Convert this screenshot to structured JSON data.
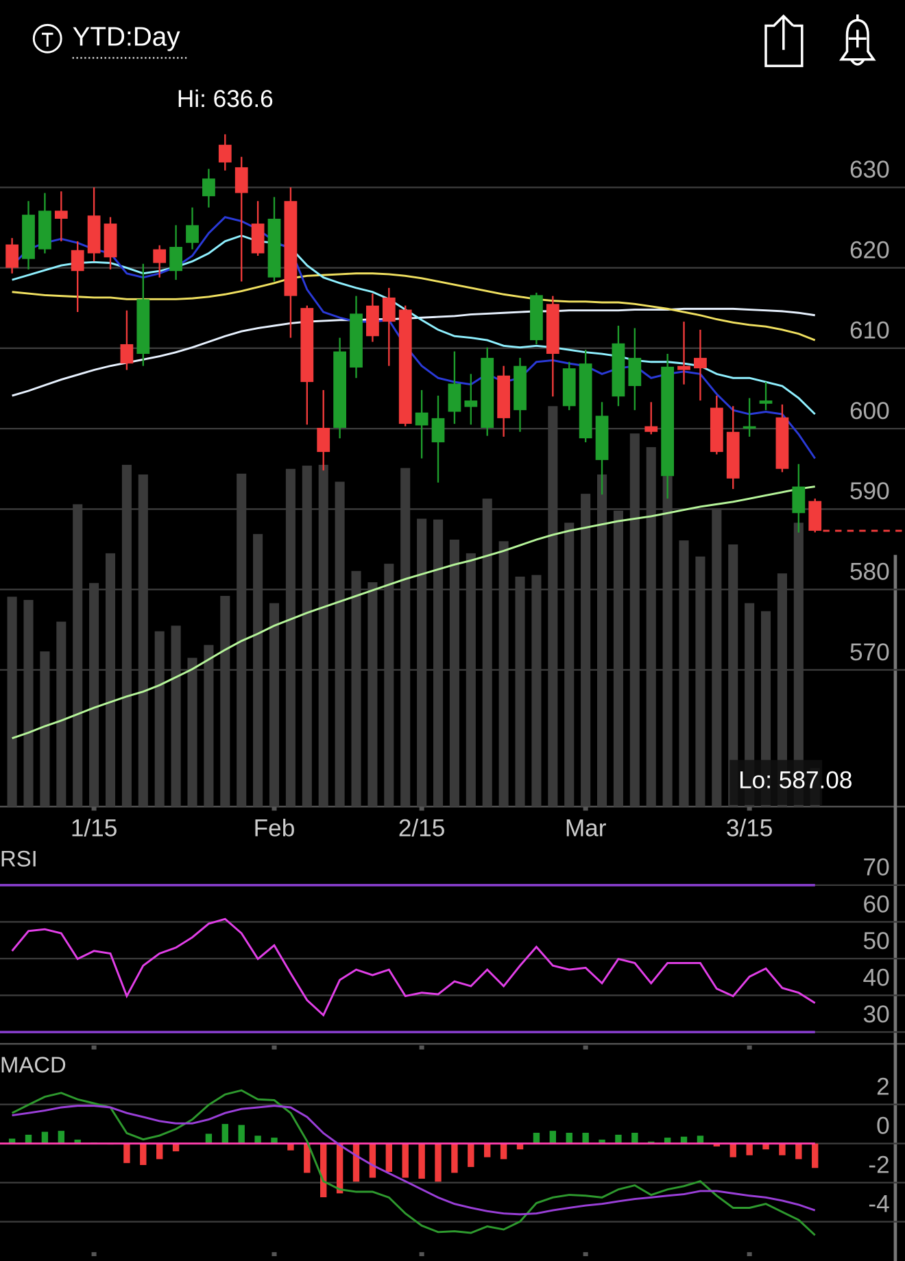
{
  "header": {
    "title": "YTD:Day"
  },
  "chart_data": [
    {
      "type": "candlestick",
      "categories": [
        null,
        null,
        null,
        null,
        null,
        "1/15",
        null,
        null,
        null,
        null,
        null,
        null,
        null,
        null,
        null,
        null,
        "Feb",
        null,
        null,
        null,
        null,
        null,
        null,
        null,
        null,
        "2/15",
        null,
        null,
        null,
        null,
        null,
        null,
        null,
        null,
        null,
        "Mar",
        null,
        null,
        null,
        null,
        null,
        null,
        null,
        null,
        null,
        "3/15",
        null,
        null,
        null,
        null
      ],
      "open": [
        622.9,
        621.1,
        622.3,
        627.1,
        622.2,
        626.5,
        625.5,
        610.5,
        609.3,
        622.3,
        619.6,
        623.1,
        628.9,
        635.3,
        632.5,
        625.5,
        618.8,
        628.3,
        615,
        600.1,
        600.1,
        607.6,
        615.3,
        616.3,
        614.8,
        600.4,
        598.3,
        602.1,
        602.7,
        600.1,
        606.6,
        602.3,
        611,
        615.5,
        602.8,
        598.8,
        596.1,
        604,
        605.3,
        600.3,
        594.1,
        607.8,
        608.8,
        602.6,
        599.6,
        600,
        603.1,
        601.4,
        589.5,
        591
      ],
      "high": [
        623.7,
        628.3,
        629.3,
        629.5,
        623.3,
        630,
        626.3,
        614.7,
        620.5,
        622.8,
        625.3,
        627.5,
        632.3,
        636.6,
        633.8,
        628.3,
        628.8,
        630,
        615.3,
        604.8,
        611.3,
        616.5,
        616.8,
        617.5,
        615.3,
        604.8,
        604.1,
        609.6,
        606.8,
        610.1,
        607.8,
        608.8,
        616.9,
        616.5,
        608.3,
        609.8,
        603.3,
        612.8,
        612.5,
        603.3,
        609.3,
        613.3,
        612.3,
        604.1,
        602.8,
        603.8,
        605.8,
        603,
        595.6,
        591.3
      ],
      "low": [
        619.3,
        619.8,
        621.8,
        623.3,
        614.5,
        620.8,
        619.8,
        607.3,
        607.8,
        618.8,
        618.5,
        622.3,
        627.5,
        632.1,
        618.3,
        621.5,
        618.3,
        611.3,
        600.5,
        594.8,
        598.8,
        606.3,
        610.8,
        607.8,
        600.3,
        596.3,
        593.3,
        600.6,
        600.5,
        599.1,
        599,
        599.6,
        610.5,
        604,
        602.3,
        598.3,
        591.8,
        602.8,
        602.3,
        599.3,
        591.3,
        605.5,
        603.5,
        596.8,
        592.5,
        599,
        602.3,
        594.6,
        587.08,
        587.1
      ],
      "close": [
        620,
        626.6,
        627.1,
        626.1,
        619.6,
        621.8,
        621.3,
        608.1,
        616.1,
        620.6,
        622.6,
        625.3,
        631.1,
        633.1,
        629.3,
        621.8,
        626.1,
        616.5,
        605.8,
        597.1,
        609.6,
        614.3,
        611.5,
        613.3,
        600.6,
        602,
        601.3,
        605.6,
        603.5,
        608.8,
        601.3,
        607.8,
        616.6,
        609.3,
        607.5,
        608.1,
        601.6,
        610.6,
        608.8,
        599.6,
        607.7,
        607.3,
        607.5,
        597.1,
        593.8,
        600.3,
        603.5,
        595,
        592.8,
        587.3
      ],
      "volume": [
        261,
        257,
        193,
        230,
        376,
        278,
        315,
        425,
        413,
        218,
        225,
        185,
        201,
        262,
        414,
        339,
        253,
        420,
        424,
        425,
        404,
        293,
        279,
        302,
        421,
        358,
        357,
        332,
        315,
        383,
        330,
        286,
        288,
        498,
        353,
        389,
        413,
        368,
        464,
        447,
        411,
        331,
        311,
        371,
        326,
        253,
        243,
        290,
        353,
        48
      ],
      "volume_color": "#3a3a3a",
      "up_color": "#1e9e2c",
      "down_color": "#f23b3b",
      "series": [
        {
          "color": "#b6f59a",
          "values": [
            561.5,
            562.2,
            563,
            563.7,
            564.5,
            565.3,
            566,
            566.7,
            567.3,
            568.1,
            569.1,
            570.1,
            571.3,
            572.5,
            573.6,
            574.5,
            575.5,
            576.3,
            577.1,
            577.8,
            578.5,
            579.2,
            579.9,
            580.6,
            581.3,
            581.9,
            582.5,
            583.1,
            583.6,
            584.2,
            584.8,
            585.5,
            586.2,
            586.8,
            587.3,
            587.7,
            588.1,
            588.5,
            588.8,
            589.1,
            589.5,
            589.9,
            590.3,
            590.6,
            590.9,
            591.3,
            591.7,
            592.1,
            592.5,
            592.8
          ]
        },
        {
          "color": "#e8f2ff",
          "values": [
            604.1,
            604.7,
            605.4,
            606.1,
            606.7,
            607.3,
            607.8,
            608.2,
            608.6,
            609,
            609.5,
            610.1,
            610.8,
            611.5,
            612.1,
            612.5,
            612.8,
            613.1,
            613.3,
            613.4,
            613.5,
            613.5,
            613.6,
            613.6,
            613.7,
            613.8,
            613.9,
            614,
            614.2,
            614.3,
            614.4,
            614.5,
            614.6,
            614.6,
            614.7,
            614.7,
            614.7,
            614.7,
            614.8,
            614.8,
            614.8,
            614.9,
            614.9,
            614.9,
            614.9,
            614.8,
            614.7,
            614.6,
            614.4,
            614.1
          ]
        },
        {
          "color": "#f0e060",
          "values": [
            617,
            616.8,
            616.6,
            616.5,
            616.4,
            616.3,
            616.3,
            616.1,
            616.1,
            616.1,
            616.1,
            616.2,
            616.4,
            616.7,
            617.1,
            617.6,
            618.1,
            618.7,
            619,
            619.1,
            619.2,
            619.3,
            619.3,
            619.2,
            619,
            618.7,
            618.3,
            617.9,
            617.5,
            617.1,
            616.7,
            616.4,
            616.1,
            615.9,
            615.8,
            615.8,
            615.7,
            615.7,
            615.5,
            615.2,
            614.9,
            614.5,
            614.1,
            613.6,
            613.2,
            612.9,
            612.7,
            612.3,
            611.8,
            611
          ]
        },
        {
          "color": "#8ff0ff",
          "values": [
            618.5,
            619.1,
            619.7,
            620.3,
            620.6,
            620.7,
            620.6,
            620,
            619.3,
            619.6,
            620.1,
            620.8,
            621.8,
            623.3,
            624,
            623.3,
            623.1,
            622.5,
            620.3,
            618.8,
            618.1,
            617.5,
            617,
            616.1,
            614.8,
            613.5,
            612.3,
            611.5,
            611.3,
            611,
            610.3,
            610.1,
            610.3,
            610.1,
            609.8,
            609.5,
            609.3,
            609,
            608.5,
            608.3,
            608.3,
            608.1,
            607.8,
            606.8,
            606.3,
            606.3,
            605.8,
            605.3,
            603.8,
            601.8
          ]
        },
        {
          "color": "#2a3ad8",
          "values": [
            620.3,
            622.3,
            623.1,
            623.6,
            623.1,
            622.3,
            621.8,
            619.3,
            618.8,
            619.3,
            620.1,
            621.5,
            624.3,
            626.3,
            625.8,
            624.8,
            623.3,
            622.3,
            617.3,
            614.5,
            613.8,
            613.3,
            613.3,
            613.5,
            610.3,
            607.8,
            606.3,
            605.8,
            605.5,
            606.8,
            605.8,
            606.3,
            608.3,
            608.5,
            608.1,
            607.8,
            606.8,
            607.5,
            607.8,
            606.3,
            606.8,
            607.1,
            606.8,
            604.3,
            602.3,
            601.8,
            602.1,
            601.8,
            599.3,
            596.3
          ]
        }
      ],
      "ylim": [
        553,
        640
      ],
      "yticks": [
        570,
        580,
        590,
        600,
        610,
        620,
        630
      ],
      "grid": true,
      "hi_label": "Hi: 636.6",
      "lo_label": "Lo: 587.08",
      "last_color": "#f23b3b"
    },
    {
      "type": "line",
      "title": "RSI",
      "series": [
        {
          "color": "#e23fe8",
          "values": [
            52.1,
            57.5,
            58,
            56.9,
            49.9,
            52.1,
            51.4,
            39.8,
            48.1,
            51.4,
            53,
            55.8,
            59.5,
            60.8,
            56.9,
            49.9,
            53.6,
            46,
            38.7,
            34.6,
            44.2,
            47,
            45.5,
            47,
            39.8,
            40.7,
            40.3,
            43.8,
            42.5,
            47,
            42.5,
            48.1,
            53.2,
            48.1,
            47,
            47.5,
            43.3,
            49.9,
            48.8,
            43.3,
            48.8,
            48.8,
            48.8,
            41.8,
            39.8,
            45.1,
            47.3,
            42,
            40.7,
            37.9
          ]
        }
      ],
      "levels": [
        30,
        70
      ],
      "level_color": "#8a3fd0",
      "ylim": [
        27,
        80
      ],
      "yticks": [
        30,
        40,
        50,
        60,
        70
      ],
      "grid": true
    },
    {
      "type": "macd",
      "title": "MACD",
      "series": [
        {
          "color": "#2e9a2e",
          "values": [
            1.56,
            1.98,
            2.39,
            2.59,
            2.26,
            2.06,
            1.85,
            0.53,
            0.21,
            0.41,
            0.74,
            1.23,
            1.98,
            2.51,
            2.72,
            2.26,
            2.22,
            1.56,
            0.12,
            -1.93,
            -2.35,
            -2.47,
            -2.47,
            -2.76,
            -3.58,
            -4.2,
            -4.53,
            -4.49,
            -4.57,
            -4.24,
            -4.4,
            -3.99,
            -3.05,
            -2.76,
            -2.63,
            -2.67,
            -2.76,
            -2.35,
            -2.14,
            -2.63,
            -2.35,
            -2.18,
            -1.93,
            -2.67,
            -3.29,
            -3.29,
            -3.09,
            -3.5,
            -3.91,
            -4.69
          ]
        },
        {
          "color": "#9a3fd8",
          "values": [
            1.44,
            1.56,
            1.69,
            1.85,
            1.93,
            1.93,
            1.85,
            1.56,
            1.36,
            1.15,
            1.03,
            1.03,
            1.23,
            1.56,
            1.77,
            1.85,
            1.93,
            1.85,
            1.36,
            0.53,
            -0.08,
            -0.62,
            -1.11,
            -1.52,
            -1.93,
            -2.35,
            -2.76,
            -3.09,
            -3.29,
            -3.46,
            -3.58,
            -3.62,
            -3.58,
            -3.42,
            -3.29,
            -3.17,
            -3.09,
            -2.96,
            -2.84,
            -2.76,
            -2.67,
            -2.59,
            -2.43,
            -2.43,
            -2.55,
            -2.67,
            -2.76,
            -2.92,
            -3.13,
            -3.42
          ]
        }
      ],
      "histogram": [
        0.25,
        0.45,
        0.6,
        0.65,
        0.2,
        0.05,
        -0.05,
        -1,
        -1.1,
        -0.8,
        -0.4,
        0,
        0.5,
        1,
        0.95,
        0.4,
        0.3,
        -0.35,
        -1.5,
        -2.75,
        -2.55,
        -1.95,
        -1.75,
        -1.45,
        -1.75,
        -1.8,
        -1.95,
        -1.5,
        -1.2,
        -0.7,
        -0.8,
        -0.3,
        0.55,
        0.65,
        0.55,
        0.55,
        0.2,
        0.45,
        0.55,
        0.1,
        0.3,
        0.35,
        0.4,
        -0.15,
        -0.7,
        -0.6,
        -0.3,
        -0.6,
        -0.8,
        -1.25
      ],
      "up_color": "#1e9e2c",
      "down_color": "#f23b3b",
      "zero_color": "#ff3fae",
      "ylim": [
        -5.6,
        4.4
      ],
      "yticks": [
        -4,
        -2,
        0,
        2
      ],
      "grid": true
    }
  ]
}
